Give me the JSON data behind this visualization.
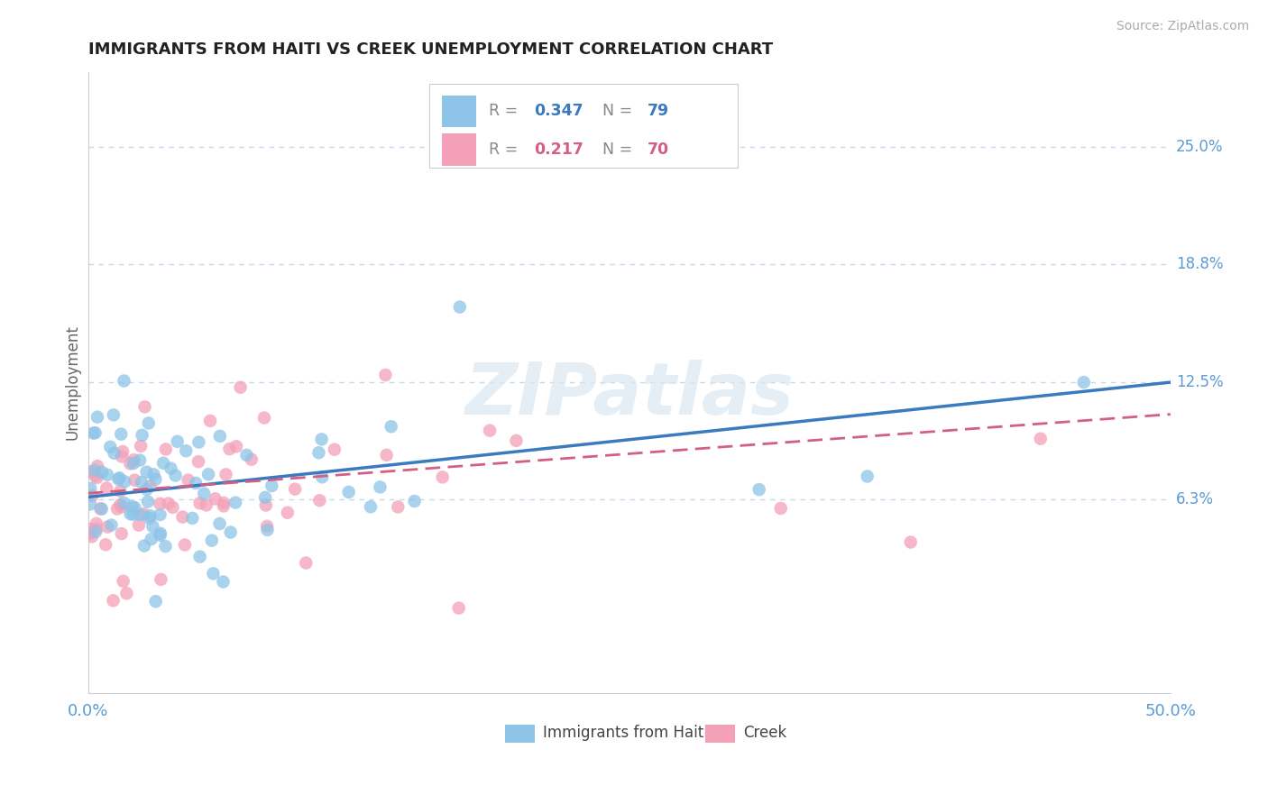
{
  "title": "IMMIGRANTS FROM HAITI VS CREEK UNEMPLOYMENT CORRELATION CHART",
  "source": "Source: ZipAtlas.com",
  "ylabel": "Unemployment",
  "xlim": [
    0.0,
    0.5
  ],
  "ylim": [
    -0.04,
    0.29
  ],
  "xtick_labels": [
    "0.0%",
    "50.0%"
  ],
  "ytick_values": [
    0.063,
    0.125,
    0.188,
    0.25
  ],
  "ytick_labels": [
    "6.3%",
    "12.5%",
    "18.8%",
    "25.0%"
  ],
  "blue_color": "#8dc4e8",
  "pink_color": "#f4a0b8",
  "blue_line_color": "#3a7abf",
  "pink_line_color": "#d45f85",
  "r_blue": 0.347,
  "r_pink": 0.217,
  "n_blue": 79,
  "n_pink": 70,
  "watermark": "ZIPatlas",
  "grid_color": "#c5d9ee",
  "background_color": "#ffffff",
  "blue_line_x0": 0.0,
  "blue_line_y0": 0.064,
  "blue_line_x1": 0.5,
  "blue_line_y1": 0.125,
  "pink_line_x0": 0.0,
  "pink_line_y0": 0.066,
  "pink_line_x1": 0.5,
  "pink_line_y1": 0.108
}
